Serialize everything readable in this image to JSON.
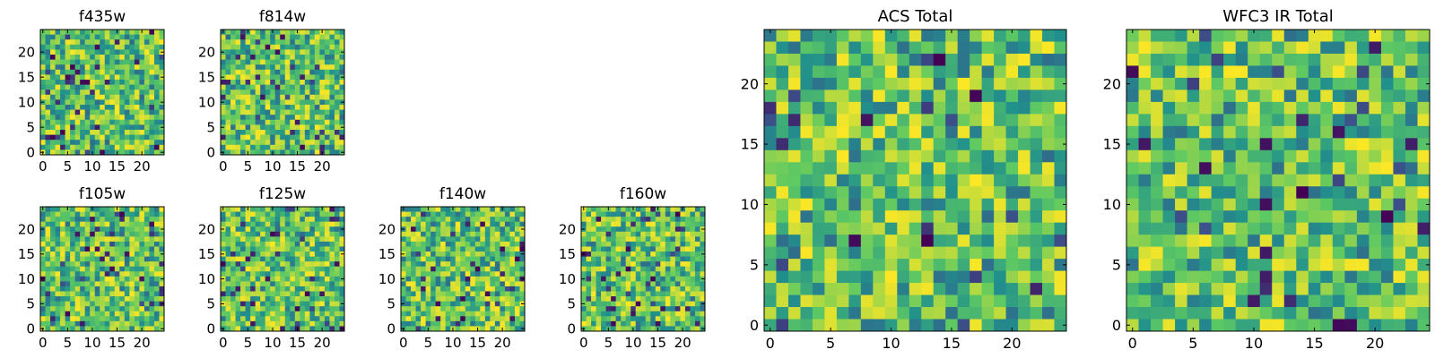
{
  "figure": {
    "colormap": "viridis",
    "colorscale_stops": [
      "#440154",
      "#3b528b",
      "#21918c",
      "#5ec962",
      "#fde725"
    ],
    "frame_color": "#000000",
    "background": "#ffffff"
  },
  "chart_data": [
    {
      "type": "heatmap",
      "id": "f435w",
      "title": "f435w",
      "grid_size": 25,
      "seed": 11,
      "xlim": [
        -0.5,
        24.5
      ],
      "ylim": [
        -0.5,
        24.5
      ],
      "xticks": [
        0,
        5,
        10,
        15,
        20
      ],
      "xtick_labels": [
        "0",
        "5",
        "10",
        "15",
        "20"
      ],
      "yticks": [
        0,
        5,
        10,
        15,
        20
      ],
      "ytick_labels": [
        "0",
        "5",
        "10",
        "15",
        "20"
      ]
    },
    {
      "type": "heatmap",
      "id": "f814w",
      "title": "f814w",
      "grid_size": 25,
      "seed": 23,
      "xlim": [
        -0.5,
        24.5
      ],
      "ylim": [
        -0.5,
        24.5
      ],
      "xticks": [
        0,
        5,
        10,
        15,
        20
      ],
      "xtick_labels": [
        "0",
        "5",
        "10",
        "15",
        "20"
      ],
      "yticks": [
        0,
        5,
        10,
        15,
        20
      ],
      "ytick_labels": [
        "0",
        "5",
        "10",
        "15",
        "20"
      ]
    },
    {
      "type": "heatmap",
      "id": "f105w",
      "title": "f105w",
      "grid_size": 25,
      "seed": 37,
      "xlim": [
        -0.5,
        24.5
      ],
      "ylim": [
        -0.5,
        24.5
      ],
      "xticks": [
        0,
        5,
        10,
        15,
        20
      ],
      "xtick_labels": [
        "0",
        "5",
        "10",
        "15",
        "20"
      ],
      "yticks": [
        0,
        5,
        10,
        15,
        20
      ],
      "ytick_labels": [
        "0",
        "5",
        "10",
        "15",
        "20"
      ]
    },
    {
      "type": "heatmap",
      "id": "f125w",
      "title": "f125w",
      "grid_size": 25,
      "seed": 41,
      "xlim": [
        -0.5,
        24.5
      ],
      "ylim": [
        -0.5,
        24.5
      ],
      "xticks": [
        0,
        5,
        10,
        15,
        20
      ],
      "xtick_labels": [
        "0",
        "5",
        "10",
        "15",
        "20"
      ],
      "yticks": [
        0,
        5,
        10,
        15,
        20
      ],
      "ytick_labels": [
        "0",
        "5",
        "10",
        "15",
        "20"
      ]
    },
    {
      "type": "heatmap",
      "id": "f140w",
      "title": "f140w",
      "grid_size": 25,
      "seed": 53,
      "xlim": [
        -0.5,
        24.5
      ],
      "ylim": [
        -0.5,
        24.5
      ],
      "xticks": [
        0,
        5,
        10,
        15,
        20
      ],
      "xtick_labels": [
        "0",
        "5",
        "10",
        "15",
        "20"
      ],
      "yticks": [
        0,
        5,
        10,
        15,
        20
      ],
      "ytick_labels": [
        "0",
        "5",
        "10",
        "15",
        "20"
      ]
    },
    {
      "type": "heatmap",
      "id": "f160w",
      "title": "f160w",
      "grid_size": 25,
      "seed": 67,
      "xlim": [
        -0.5,
        24.5
      ],
      "ylim": [
        -0.5,
        24.5
      ],
      "xticks": [
        0,
        5,
        10,
        15,
        20
      ],
      "xtick_labels": [
        "0",
        "5",
        "10",
        "15",
        "20"
      ],
      "yticks": [
        0,
        5,
        10,
        15,
        20
      ],
      "ytick_labels": [
        "0",
        "5",
        "10",
        "15",
        "20"
      ]
    },
    {
      "type": "heatmap",
      "id": "acs-total",
      "title": "ACS Total",
      "grid_size": 25,
      "seed": 79,
      "xlim": [
        -0.5,
        24.5
      ],
      "ylim": [
        -0.5,
        24.5
      ],
      "xticks": [
        0,
        5,
        10,
        15,
        20
      ],
      "xtick_labels": [
        "0",
        "5",
        "10",
        "15",
        "20"
      ],
      "yticks": [
        0,
        5,
        10,
        15,
        20
      ],
      "ytick_labels": [
        "0",
        "5",
        "10",
        "15",
        "20"
      ]
    },
    {
      "type": "heatmap",
      "id": "wfc3-ir-total",
      "title": "WFC3 IR Total",
      "grid_size": 25,
      "seed": 97,
      "xlim": [
        -0.5,
        24.5
      ],
      "ylim": [
        -0.5,
        24.5
      ],
      "xticks": [
        0,
        5,
        10,
        15,
        20
      ],
      "xtick_labels": [
        "0",
        "5",
        "10",
        "15",
        "20"
      ],
      "yticks": [
        0,
        5,
        10,
        15,
        20
      ],
      "ytick_labels": [
        "0",
        "5",
        "10",
        "15",
        "20"
      ]
    }
  ]
}
